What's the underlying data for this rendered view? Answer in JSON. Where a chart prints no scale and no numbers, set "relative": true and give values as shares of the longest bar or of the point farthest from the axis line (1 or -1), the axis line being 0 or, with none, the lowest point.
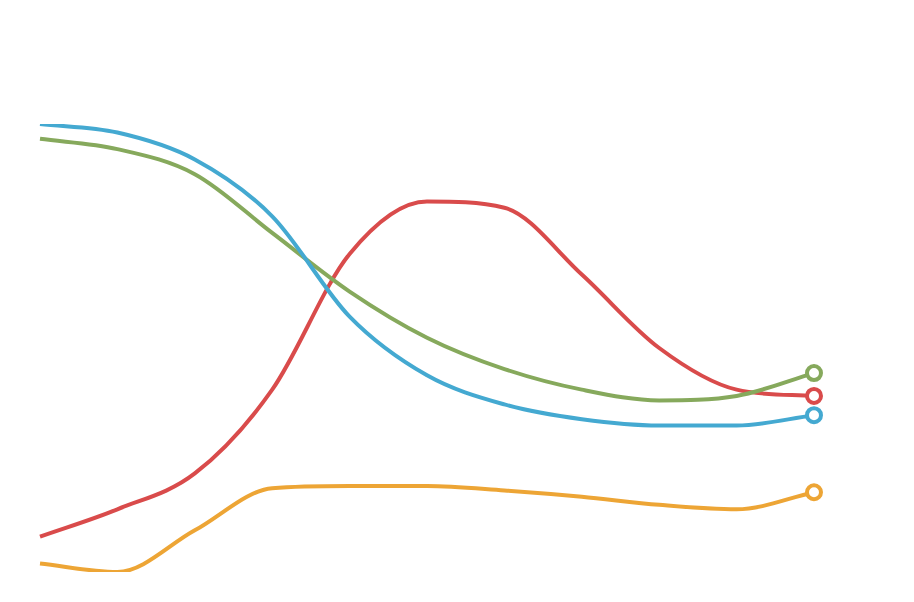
{
  "chart_data": {
    "type": "line",
    "relative": true,
    "categories": [
      null,
      null,
      null,
      null,
      null,
      null,
      null,
      null,
      null,
      null,
      null
    ],
    "line_style": "solid",
    "series": [
      {
        "color": "#44a9d1",
        "values": [
          1,
          0.981,
          0.921,
          0.794,
          0.57,
          0.439,
          0.374,
          0.341,
          0.327,
          0.327,
          0.35
        ]
      },
      {
        "color": "#86a95c",
        "values": [
          0.967,
          0.944,
          0.888,
          0.757,
          0.626,
          0.523,
          0.453,
          0.407,
          0.383,
          0.393,
          0.444
        ]
      },
      {
        "color": "#d94b4b",
        "values": [
          0.079,
          0.14,
          0.22,
          0.407,
          0.71,
          0.827,
          0.813,
          0.664,
          0.5,
          0.407,
          0.393
        ]
      },
      {
        "color": "#eda535",
        "values": [
          0.019,
          0,
          0.093,
          0.187,
          0.192,
          0.192,
          0.182,
          0.168,
          0.15,
          0.14,
          0.178
        ]
      }
    ]
  }
}
